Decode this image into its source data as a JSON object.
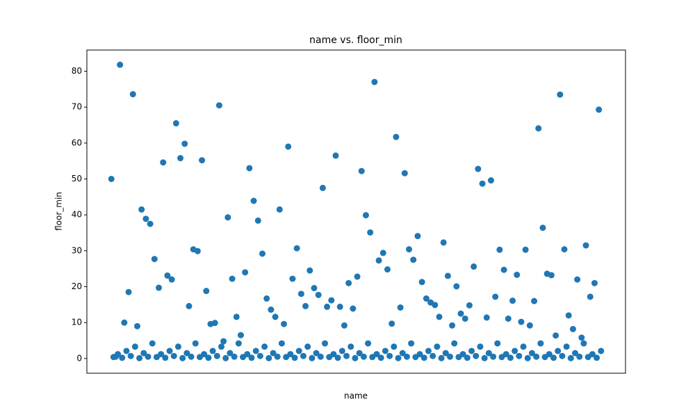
{
  "chart_data": {
    "type": "scatter",
    "title": "name vs. floor_min",
    "x_label": "name",
    "y_label": "floor_min",
    "color": "#1f77b4",
    "ylim": [
      -4.1,
      85.9
    ],
    "yticks": [
      0,
      10,
      20,
      30,
      40,
      50,
      60,
      70,
      80
    ],
    "categories": [
      null,
      null,
      null,
      null,
      null,
      null,
      null,
      null,
      null,
      null,
      null,
      null,
      null,
      null,
      null,
      null,
      null,
      null,
      null,
      null,
      null,
      null,
      null,
      null,
      null,
      null,
      null,
      null,
      null,
      null,
      null,
      null,
      null,
      null,
      null,
      null,
      null,
      null,
      null,
      null,
      null,
      null,
      null,
      null,
      null,
      null,
      null,
      null,
      null,
      null,
      null,
      null,
      null,
      null,
      null,
      null,
      null,
      null,
      null,
      null,
      null,
      null,
      null,
      null,
      null,
      null,
      null,
      null,
      null,
      null,
      null,
      null,
      null,
      null,
      null,
      null,
      null,
      null,
      null,
      null,
      null,
      null,
      null,
      null,
      null,
      null,
      null,
      null,
      null,
      null,
      null,
      null,
      null,
      null,
      null,
      null,
      null,
      null,
      null,
      null,
      null,
      null,
      null,
      null,
      null,
      null,
      null,
      null,
      null,
      null,
      null,
      null,
      null,
      null,
      null,
      null,
      null,
      null,
      null,
      null,
      null,
      null,
      null,
      null,
      null,
      null,
      null,
      null,
      null,
      null,
      null,
      null,
      null,
      null,
      null,
      null,
      null,
      null,
      null,
      null,
      null,
      null,
      null,
      null,
      null,
      null,
      null,
      null,
      null,
      null,
      null,
      null,
      null,
      null,
      null,
      null,
      null,
      null,
      null,
      null,
      null,
      null,
      null,
      null,
      null,
      null,
      null,
      null,
      null,
      null,
      null,
      null,
      null,
      null,
      null,
      null,
      null,
      null,
      null,
      null,
      null,
      null,
      null,
      null,
      null,
      null,
      null,
      null,
      null,
      null,
      null,
      null,
      null,
      null,
      null,
      null,
      null,
      null,
      null,
      null,
      null,
      null,
      null,
      null,
      null,
      null,
      null,
      null,
      null,
      null,
      null,
      null,
      null,
      null,
      null,
      null,
      null,
      null,
      null,
      null,
      null,
      null,
      null,
      null,
      null,
      null,
      null,
      null
    ],
    "values": [
      50,
      0.4,
      0.5,
      1.2,
      81.8,
      0.2,
      10,
      2.1,
      18.5,
      0.7,
      73.6,
      3.3,
      9,
      0.1,
      41.5,
      1.5,
      38.9,
      0.5,
      37.5,
      4.2,
      27.7,
      0.4,
      19.7,
      1.2,
      54.6,
      0.2,
      23.1,
      2.1,
      22,
      0.7,
      65.5,
      3.3,
      55.8,
      0.1,
      59.8,
      1.5,
      14.6,
      0.5,
      30.4,
      4.2,
      29.9,
      0.4,
      55.2,
      1.2,
      18.8,
      0.2,
      9.6,
      2.1,
      9.9,
      0.7,
      70.5,
      3.3,
      4.8,
      0.1,
      39.3,
      1.5,
      22.2,
      0.5,
      11.6,
      4.2,
      6.5,
      0.4,
      24,
      1.2,
      53,
      0.2,
      43.9,
      2.1,
      38.4,
      0.7,
      29.2,
      3.3,
      16.7,
      0.1,
      13.6,
      1.5,
      11.6,
      0.5,
      41.5,
      4.2,
      9.6,
      0.4,
      59,
      1.2,
      22.2,
      0.2,
      30.7,
      2.1,
      18,
      0.7,
      14.6,
      3.3,
      24.5,
      0.1,
      19.6,
      1.5,
      17.7,
      0.5,
      47.5,
      4.2,
      14.4,
      0.4,
      16.2,
      1.2,
      56.5,
      0.2,
      14.4,
      2.1,
      9.2,
      0.7,
      21,
      3.3,
      13.9,
      0.1,
      22.8,
      1.5,
      52.2,
      0.5,
      39.9,
      4.2,
      35.1,
      0.4,
      77,
      1.2,
      27.3,
      0.2,
      29.4,
      2.1,
      24.8,
      0.7,
      9.7,
      3.3,
      61.7,
      0.1,
      14.2,
      1.5,
      51.6,
      0.5,
      30.4,
      4.2,
      27.5,
      0.4,
      34.1,
      1.2,
      21.3,
      0.2,
      16.7,
      2.1,
      15.6,
      0.7,
      14.9,
      3.3,
      11.6,
      0.1,
      32.3,
      1.5,
      23,
      0.5,
      9.2,
      4.2,
      20.1,
      0.4,
      12.5,
      1.2,
      11.1,
      0.2,
      14.8,
      2.1,
      25.6,
      0.7,
      52.8,
      3.3,
      48.7,
      0.1,
      11.4,
      1.5,
      49.6,
      0.5,
      17.2,
      4.2,
      30.3,
      0.4,
      24.7,
      1.2,
      11.1,
      0.2,
      16.1,
      2.1,
      23.3,
      0.7,
      10.2,
      3.3,
      30.3,
      0.1,
      9.2,
      1.5,
      16,
      0.5,
      64.1,
      4.2,
      36.4,
      0.4,
      23.6,
      1.2,
      23.2,
      0.2,
      6.4,
      2.1,
      73.5,
      0.7,
      30.4,
      3.3,
      12,
      0.1,
      8.2,
      1.5,
      22,
      0.5,
      5.8,
      4.2,
      31.5,
      0.4,
      17.2,
      1.2,
      21,
      0.2,
      69.3,
      2.1
    ]
  }
}
